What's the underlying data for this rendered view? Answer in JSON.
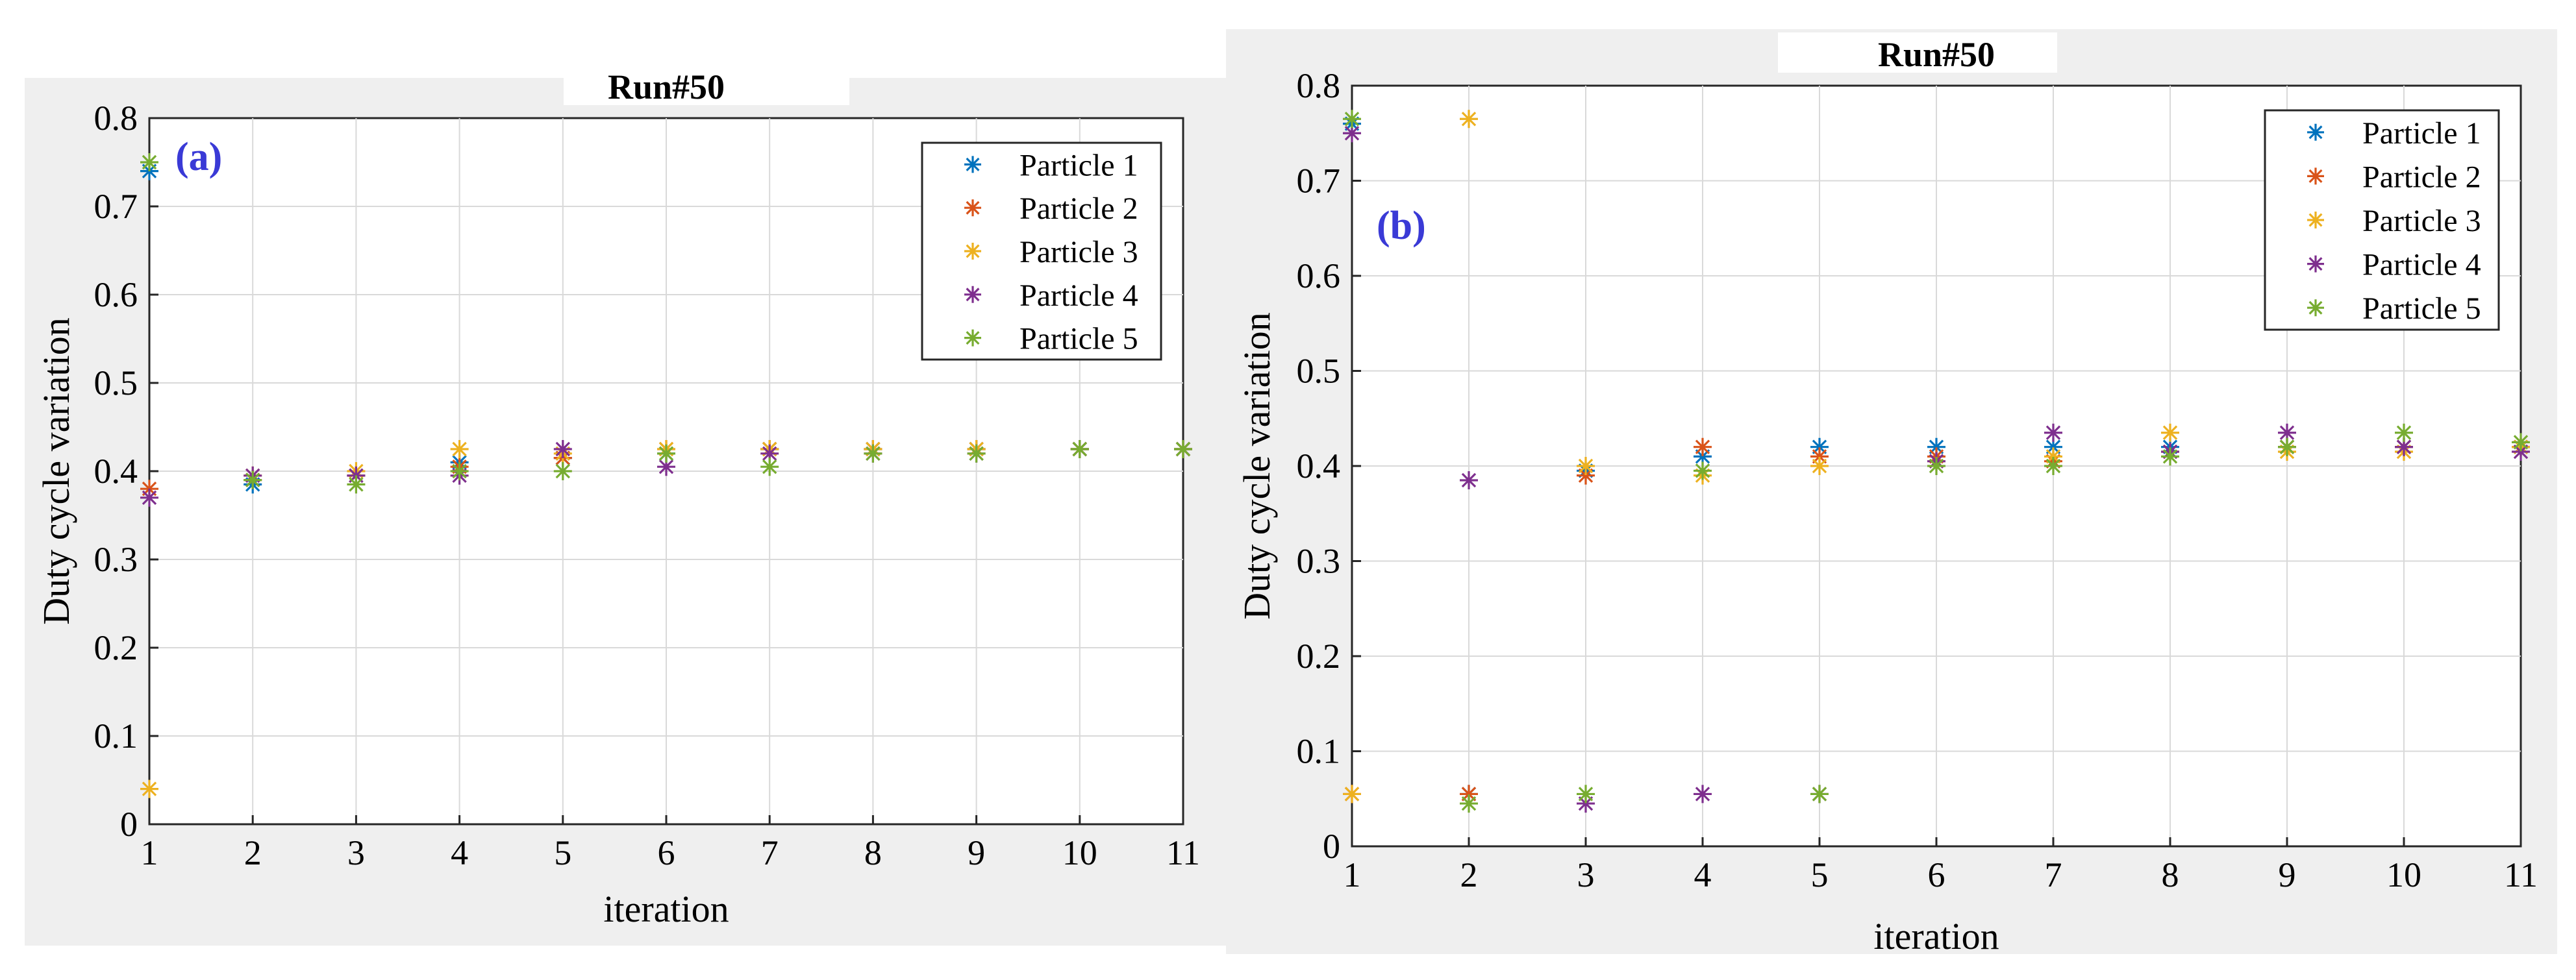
{
  "colors": {
    "particle_1": "#0072bd",
    "particle_2": "#d95319",
    "particle_3": "#edb120",
    "particle_4": "#7e2f8e",
    "particle_5": "#77ac30",
    "panel_label": "#3a3ad6"
  },
  "chart_data": [
    {
      "type": "scatter",
      "panel_label": "(a)",
      "title": "Run#50",
      "xlabel": "iteration",
      "ylabel": "Duty cycle variation",
      "xlim": [
        1,
        11
      ],
      "ylim": [
        0,
        0.8
      ],
      "xticks": [
        "1",
        "2",
        "3",
        "4",
        "5",
        "6",
        "7",
        "8",
        "9",
        "10",
        "11"
      ],
      "yticks": [
        "0",
        "0.1",
        "0.2",
        "0.3",
        "0.4",
        "0.5",
        "0.6",
        "0.7",
        "0.8"
      ],
      "grid": true,
      "marker": "*",
      "legend_position": "top-right",
      "x": [
        1,
        2,
        3,
        4,
        5,
        6,
        7,
        8,
        9,
        10,
        11
      ],
      "series": [
        {
          "name": "Particle 1",
          "values": [
            0.74,
            0.385,
            0.395,
            0.41,
            0.415,
            0.42,
            0.425,
            0.425,
            0.425,
            0.425,
            0.425
          ]
        },
        {
          "name": "Particle 2",
          "values": [
            0.38,
            0.39,
            0.395,
            0.405,
            0.415,
            0.425,
            0.425,
            0.425,
            0.425,
            0.425,
            0.425
          ]
        },
        {
          "name": "Particle 3",
          "values": [
            0.04,
            0.395,
            0.4,
            0.425,
            0.42,
            0.425,
            0.425,
            0.425,
            0.425,
            0.425,
            0.425
          ]
        },
        {
          "name": "Particle 4",
          "values": [
            0.37,
            0.395,
            0.395,
            0.395,
            0.425,
            0.405,
            0.42,
            0.42,
            0.42,
            0.425,
            0.425
          ]
        },
        {
          "name": "Particle 5",
          "values": [
            0.75,
            0.39,
            0.385,
            0.4,
            0.4,
            0.42,
            0.405,
            0.42,
            0.42,
            0.425,
            0.425
          ]
        }
      ]
    },
    {
      "type": "scatter",
      "panel_label": "(b)",
      "title": "Run#50",
      "xlabel": "iteration",
      "ylabel": "Duty cycle variation",
      "xlim": [
        1,
        11
      ],
      "ylim": [
        0,
        0.8
      ],
      "xticks": [
        "1",
        "2",
        "3",
        "4",
        "5",
        "6",
        "7",
        "8",
        "9",
        "10",
        "11"
      ],
      "yticks": [
        "0",
        "0.1",
        "0.2",
        "0.3",
        "0.4",
        "0.5",
        "0.6",
        "0.7",
        "0.8"
      ],
      "grid": true,
      "marker": "*",
      "legend_position": "top-right",
      "x": [
        1,
        2,
        3,
        4,
        5,
        6,
        7,
        8,
        9,
        10,
        11
      ],
      "series": [
        {
          "name": "Particle 1",
          "values": [
            0.76,
            0.055,
            0.395,
            0.41,
            0.42,
            0.42,
            0.42,
            0.42,
            0.42,
            0.42,
            0.42
          ]
        },
        {
          "name": "Particle 2",
          "values": [
            0.055,
            0.055,
            0.39,
            0.42,
            0.41,
            0.41,
            0.405,
            0.415,
            0.42,
            0.42,
            0.42
          ]
        },
        {
          "name": "Particle 3",
          "values": [
            0.055,
            0.765,
            0.4,
            0.39,
            0.4,
            0.405,
            0.41,
            0.435,
            0.415,
            0.415,
            0.42
          ]
        },
        {
          "name": "Particle 4",
          "values": [
            0.75,
            0.385,
            0.045,
            0.055,
            0.055,
            0.405,
            0.435,
            0.415,
            0.435,
            0.42,
            0.415
          ]
        },
        {
          "name": "Particle 5",
          "values": [
            0.765,
            0.045,
            0.055,
            0.395,
            0.055,
            0.4,
            0.4,
            0.41,
            0.42,
            0.435,
            0.425
          ]
        }
      ]
    }
  ]
}
